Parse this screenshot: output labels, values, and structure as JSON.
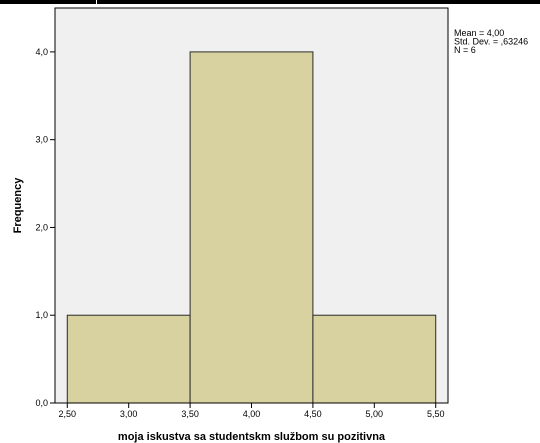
{
  "chart_data": {
    "type": "bar",
    "subtype": "histogram",
    "bins": [
      {
        "from": 2.5,
        "to": 3.5,
        "frequency": 1
      },
      {
        "from": 3.5,
        "to": 4.5,
        "frequency": 4
      },
      {
        "from": 4.5,
        "to": 5.5,
        "frequency": 1
      }
    ],
    "xlabel": "moja iskustva sa studentskm službom su pozitivna",
    "ylabel": "Frequency",
    "xlim": [
      2.4,
      5.6
    ],
    "ylim": [
      0,
      4.5
    ],
    "xticks": [
      2.5,
      3.0,
      3.5,
      4.0,
      4.5,
      5.0,
      5.5
    ],
    "xtick_labels": [
      "2,50",
      "3,00",
      "3,50",
      "4,00",
      "4,50",
      "5,00",
      "5,50"
    ],
    "yticks": [
      0,
      1,
      2,
      3,
      4
    ],
    "ytick_labels": [
      "0,0",
      "1,0",
      "2,0",
      "3,0",
      "4,0"
    ],
    "stats": [
      "Mean = 4,00",
      "Std. Dev. = ,63246",
      "N = 6"
    ],
    "grid": false,
    "colors": {
      "bar_fill": "#d7d2a0",
      "bar_stroke": "#2b2b2b",
      "plot_background": "#f0f0f0",
      "axis": "#000000"
    }
  }
}
